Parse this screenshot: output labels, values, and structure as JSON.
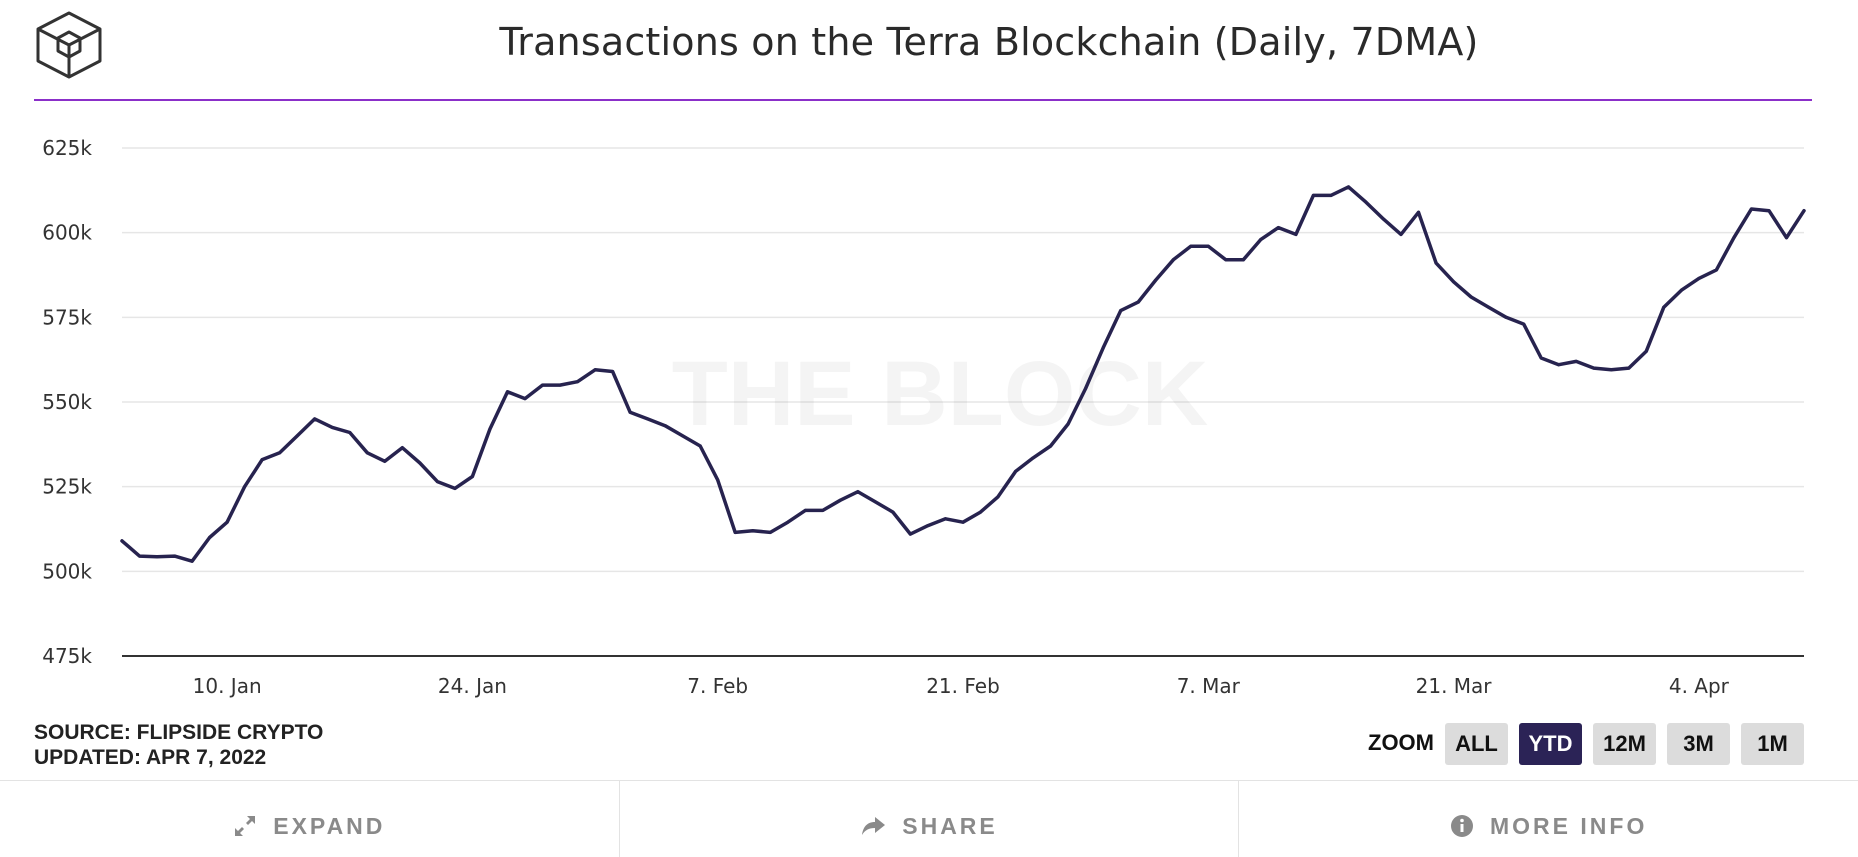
{
  "header": {
    "title": "Transactions on the Terra Blockchain (Daily, 7DMA)"
  },
  "chart_data": {
    "type": "line",
    "title": "Transactions on the Terra Blockchain (Daily, 7DMA)",
    "xlabel": "",
    "ylabel": "",
    "ylim": [
      475,
      625
    ],
    "y_unit": "k",
    "y_ticks": [
      "475k",
      "500k",
      "525k",
      "550k",
      "575k",
      "600k",
      "625k"
    ],
    "x_start_day": 4,
    "x_ticks": [
      {
        "day": 10,
        "label": "10. Jan"
      },
      {
        "day": 24,
        "label": "24. Jan"
      },
      {
        "day": 38,
        "label": "7. Feb"
      },
      {
        "day": 52,
        "label": "21. Feb"
      },
      {
        "day": 66,
        "label": "7. Mar"
      },
      {
        "day": 80,
        "label": "21. Mar"
      },
      {
        "day": 94,
        "label": "4. Apr"
      }
    ],
    "watermark": "THE BLOCK",
    "line_color": "#27234f",
    "series": [
      {
        "name": "Transactions (7DMA)",
        "values": [
          509,
          504.5,
          504.3,
          504.5,
          503,
          510,
          514.5,
          525,
          533,
          535,
          540,
          545,
          542.5,
          541,
          535,
          532.5,
          536.5,
          532,
          526.5,
          524.5,
          528,
          542,
          553,
          551,
          555,
          555,
          556,
          559.5,
          559,
          547,
          545,
          543,
          540,
          537,
          527,
          511.5,
          512,
          511.5,
          514.5,
          518,
          518,
          521,
          523.5,
          520.5,
          517.5,
          511,
          513.5,
          515.5,
          514.5,
          517.5,
          522,
          529.5,
          533.5,
          537,
          543.5,
          554,
          566,
          577,
          579.5,
          586,
          592,
          596,
          596,
          592,
          592,
          598,
          601.5,
          599.5,
          611,
          611,
          613.5,
          609,
          604,
          599.5,
          606,
          591,
          585.5,
          581,
          578,
          575,
          573,
          563,
          561,
          562,
          560,
          559.5,
          560,
          565,
          578,
          583,
          586.5,
          589,
          598.5,
          607,
          606.5,
          598.5,
          606.5
        ]
      }
    ]
  },
  "footer_info": {
    "source": "SOURCE: FLIPSIDE CRYPTO",
    "updated": "UPDATED: APR 7, 2022"
  },
  "zoom": {
    "label": "ZOOM",
    "options": [
      "ALL",
      "YTD",
      "12M",
      "3M",
      "1M"
    ],
    "active": "YTD",
    "active_color": "#2b2356"
  },
  "actions": {
    "expand": "EXPAND",
    "share": "SHARE",
    "more_info": "MORE INFO"
  },
  "icons": {
    "logo": "the-block-cube-logo",
    "expand": "expand-arrows-icon",
    "share": "share-arrow-icon",
    "info": "info-circle-icon"
  },
  "colors": {
    "title_rule": "#8b2fc9",
    "gridline": "#e6e6e6",
    "axis": "#333333"
  }
}
